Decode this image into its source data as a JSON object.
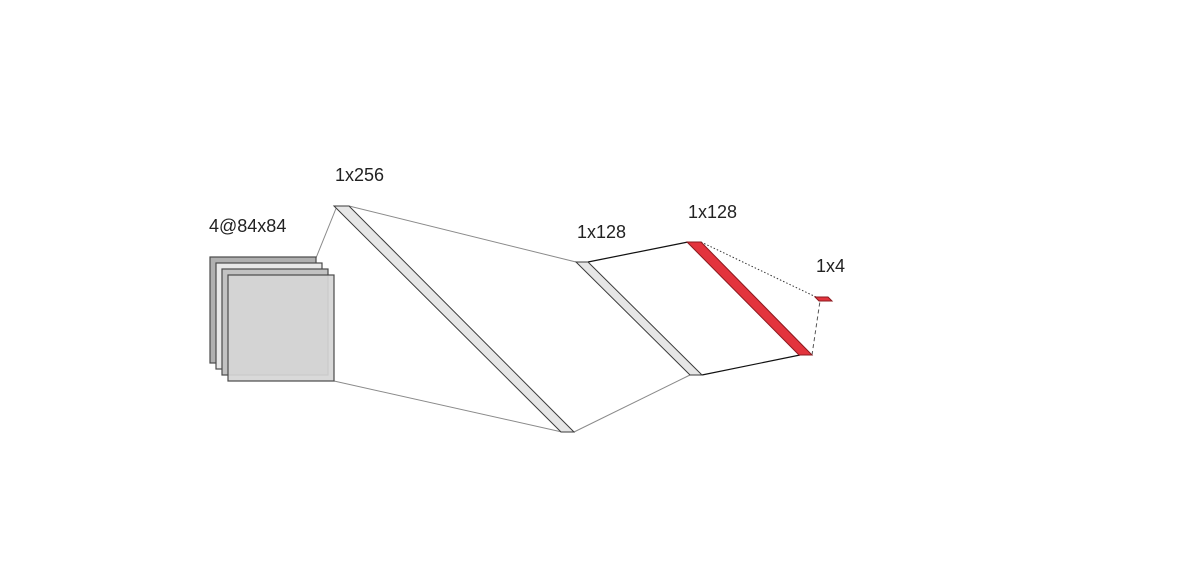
{
  "layers": [
    {
      "id": "input",
      "label": "4@84x84",
      "role": "input",
      "channels": 4
    },
    {
      "id": "fc1",
      "label": "1x256",
      "role": "hidden"
    },
    {
      "id": "fc2",
      "label": "1x128",
      "role": "hidden"
    },
    {
      "id": "fc3",
      "label": "1x128",
      "role": "highlighted"
    },
    {
      "id": "output",
      "label": "1x4",
      "role": "output"
    }
  ],
  "colors": {
    "input_back": "#b0b0b0",
    "input_mid": "#c2c2c2",
    "input_front": "#d6d6d6",
    "slab_fill": "#e6e6e6",
    "highlight_fill": "#e3343d",
    "text": "#222222"
  }
}
